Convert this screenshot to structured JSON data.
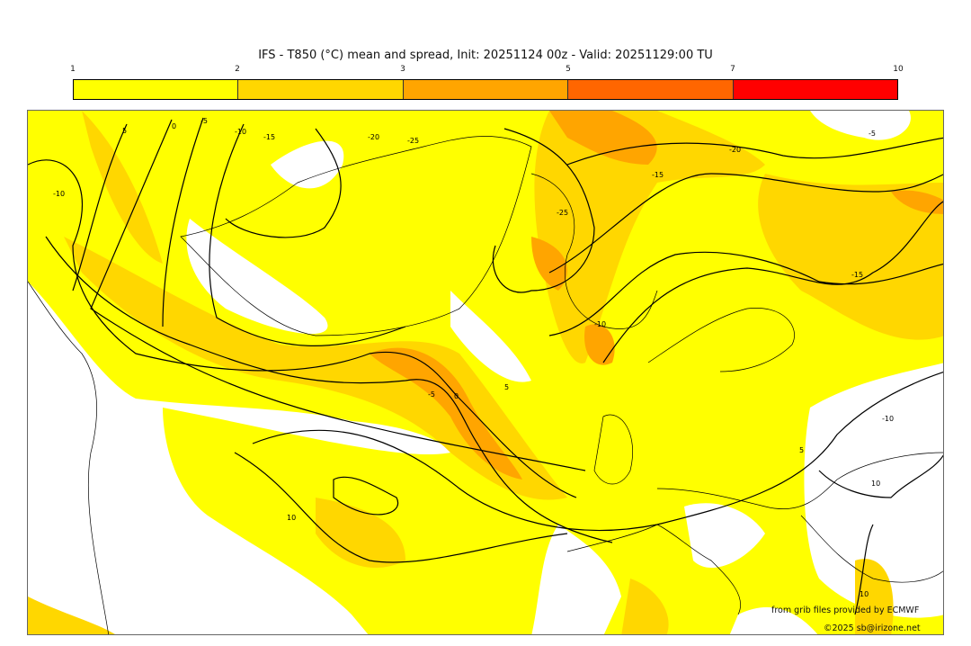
{
  "title": "IFS - T850 (°C) mean and spread, Init: 20251124 00z - Valid: 20251129:00 TU",
  "colorbar": {
    "ticks": [
      "1",
      "2",
      "3",
      "5",
      "7",
      "10"
    ],
    "colors": [
      "#ffff00",
      "#ffd700",
      "#ffa500",
      "#ff6600",
      "#ff0000"
    ]
  },
  "contour_labels": [
    "5",
    "0",
    "-5",
    "-10",
    "-15",
    "-20",
    "-25",
    "-20",
    "-15",
    "-25",
    "-10",
    "-10",
    "-5",
    "0",
    "5",
    "-5",
    "10",
    "-15",
    "10",
    "5",
    "-10",
    "10"
  ],
  "credits": {
    "source": "from grib files provided by ECMWF",
    "copyright": "©2025 sb@irizone.net"
  }
}
